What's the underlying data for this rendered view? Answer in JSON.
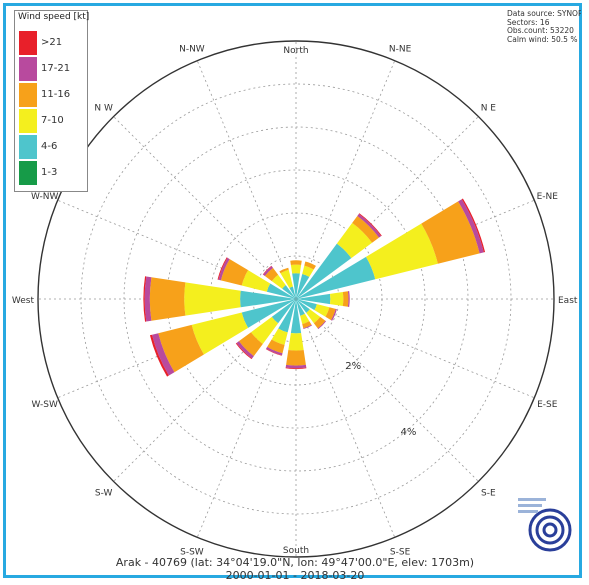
{
  "legend": {
    "title": "Wind speed [kt]",
    "items": [
      {
        "label": ">21",
        "color": "#e8202a"
      },
      {
        "label": "17-21",
        "color": "#b84a9e"
      },
      {
        "label": "11-16",
        "color": "#f7a11a"
      },
      {
        "label": "7-10",
        "color": "#f4ef1e"
      },
      {
        "label": "4-6",
        "color": "#4ec5cc"
      },
      {
        "label": "1-3",
        "color": "#169b48"
      }
    ]
  },
  "info": {
    "source": "Data source: SYNOP",
    "sectors": "Sectors: 16",
    "obs_count": "Obs.count: 53220",
    "calm": "Calm wind: 50.5 %"
  },
  "caption": {
    "line1": "Arak - 40769 (lat: 34°04'19.0\"N, lon: 49°47'00.0\"E, elev: 1703m)",
    "line2": "2000-01-01 - 2018-03-20"
  },
  "chart_data": {
    "type": "windrose",
    "directions": [
      "North",
      "N-NE",
      "N E",
      "E-NE",
      "East",
      "E-SE",
      "S-E",
      "S-SE",
      "South",
      "S-SW",
      "S-W",
      "W-SW",
      "West",
      "W-NW",
      "N W",
      "N-NW"
    ],
    "ring_labels": [
      "2%",
      "4%"
    ],
    "rmax_percent": 6,
    "speed_bins": [
      "1-3",
      "4-6",
      "7-10",
      "11-16",
      "17-21",
      ">21"
    ],
    "series": [
      {
        "name": "1-3",
        "values": [
          0,
          0,
          0,
          0,
          0,
          0,
          0,
          0,
          0,
          0,
          0,
          0,
          0,
          0,
          0,
          0
        ]
      },
      {
        "name": "4-6",
        "values": [
          0.6,
          0.6,
          1.6,
          1.9,
          0.8,
          0.5,
          0.4,
          0.4,
          0.8,
          0.8,
          0.7,
          1.3,
          1.3,
          0.7,
          0.4,
          0.3
        ]
      },
      {
        "name": "7-10",
        "values": [
          0.2,
          0.2,
          0.6,
          1.5,
          0.3,
          0.3,
          0.3,
          0.2,
          0.4,
          0.3,
          0.6,
          1.2,
          1.3,
          0.6,
          0.3,
          0.4
        ]
      },
      {
        "name": "11-16",
        "values": [
          0.1,
          0.1,
          0.2,
          1.0,
          0.12,
          0.15,
          0.15,
          0.1,
          0.35,
          0.2,
          0.35,
          0.8,
          0.8,
          0.5,
          0.2,
          0.05
        ]
      },
      {
        "name": "17-21",
        "values": [
          0,
          0,
          0.06,
          0.1,
          0.03,
          0.03,
          0.02,
          0.02,
          0.06,
          0.05,
          0.07,
          0.15,
          0.12,
          0.06,
          0.05,
          0
        ]
      },
      {
        "name": ">21",
        "values": [
          0,
          0,
          0.02,
          0.03,
          0,
          0,
          0,
          0,
          0.02,
          0.01,
          0.02,
          0.05,
          0.03,
          0.02,
          0.01,
          0
        ]
      }
    ]
  }
}
